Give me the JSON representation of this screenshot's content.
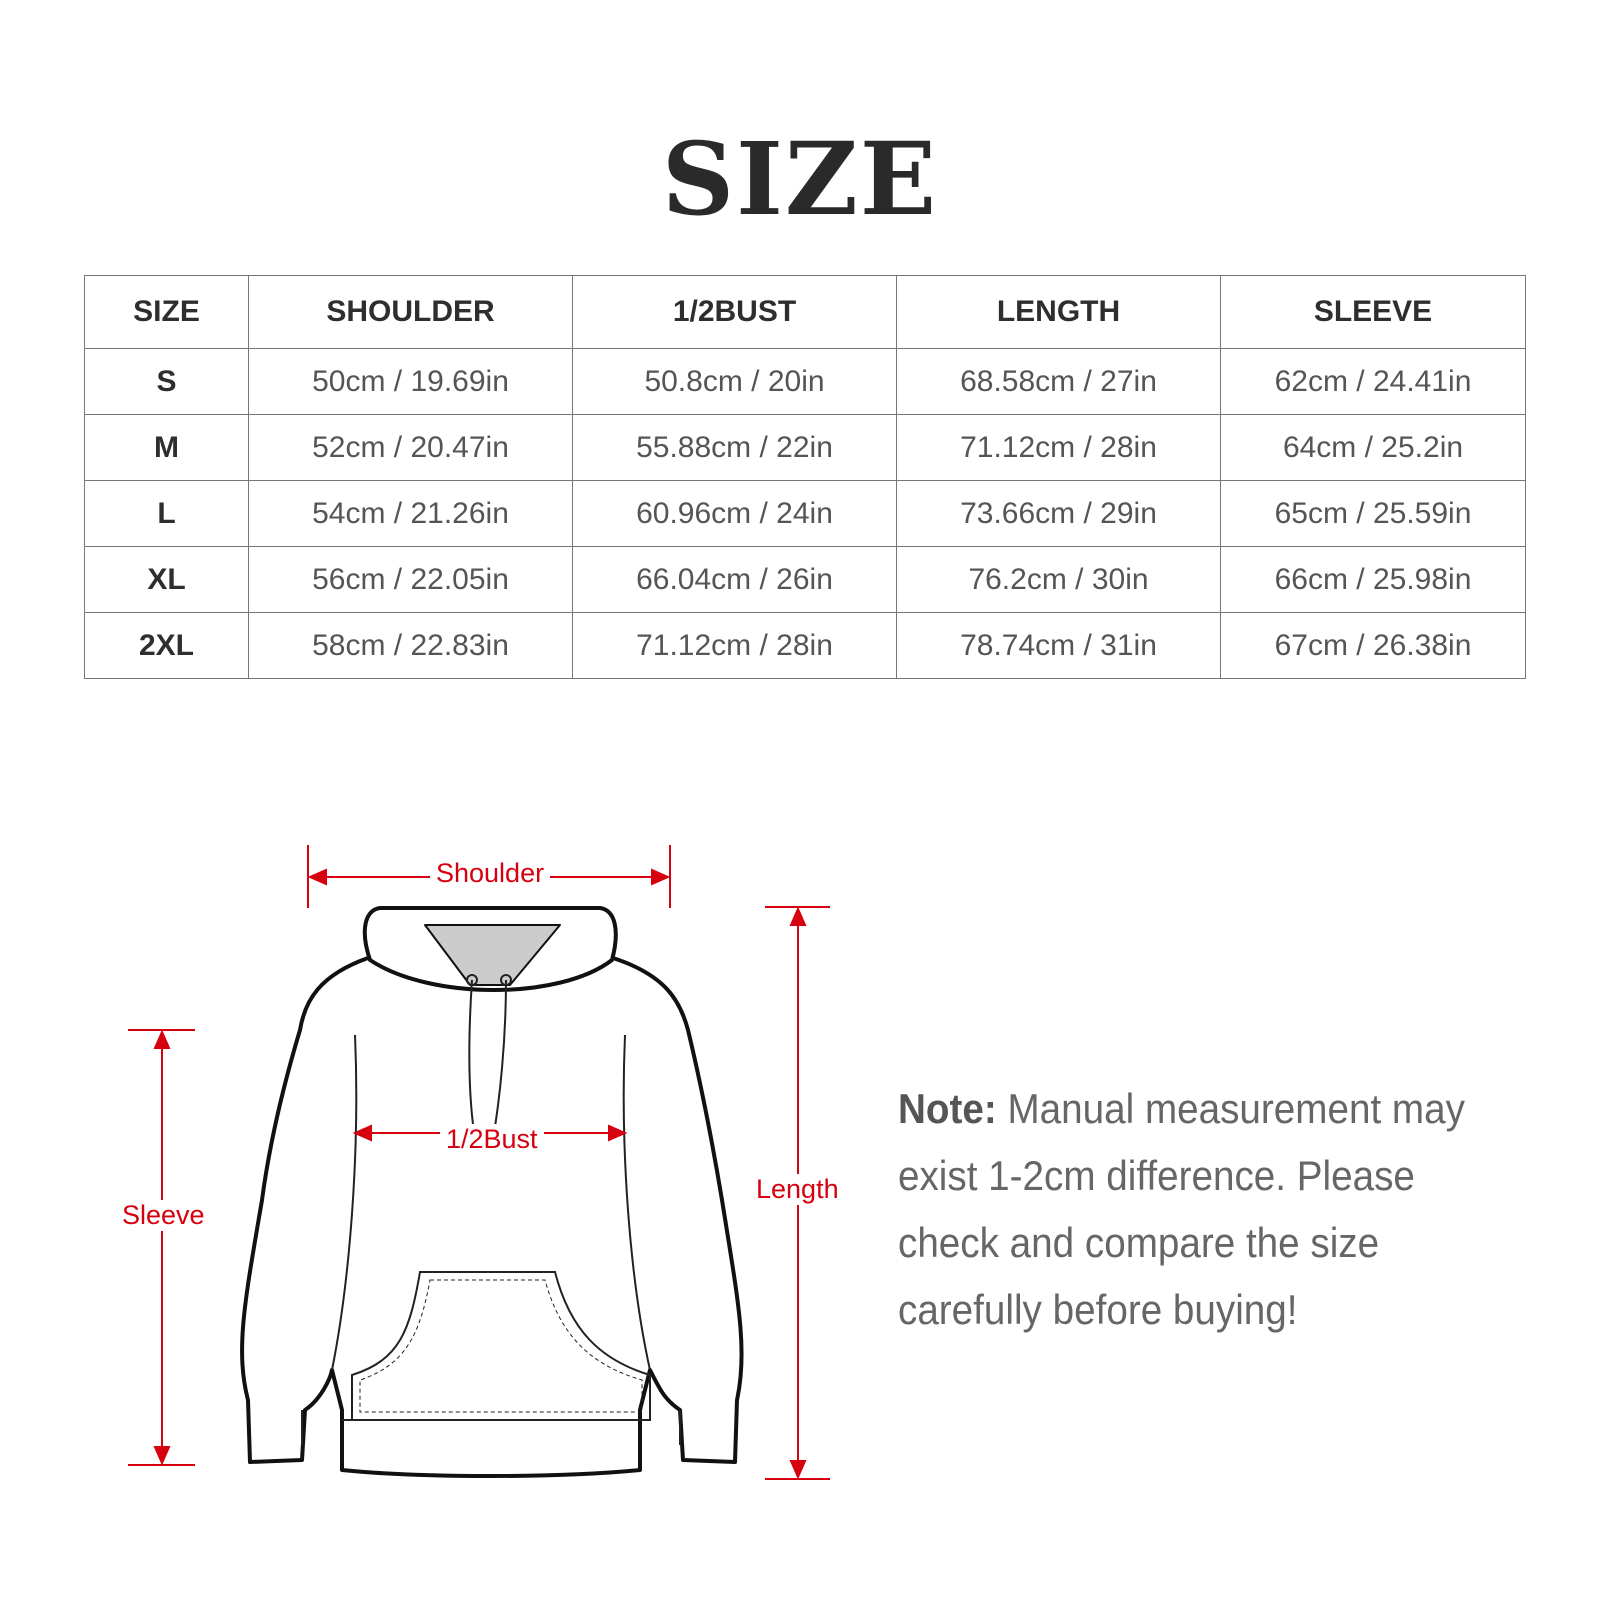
{
  "title": "SIZE",
  "table": {
    "headers": [
      "SIZE",
      "SHOULDER",
      "1/2BUST",
      "LENGTH",
      "SLEEVE"
    ],
    "rows": [
      [
        "S",
        "50cm / 19.69in",
        "50.8cm / 20in",
        "68.58cm / 27in",
        "62cm / 24.41in"
      ],
      [
        "M",
        "52cm / 20.47in",
        "55.88cm / 22in",
        "71.12cm / 28in",
        "64cm / 25.2in"
      ],
      [
        "L",
        "54cm / 21.26in",
        "60.96cm / 24in",
        "73.66cm / 29in",
        "65cm / 25.59in"
      ],
      [
        "XL",
        "56cm / 22.05in",
        "66.04cm / 26in",
        "76.2cm / 30in",
        "66cm / 25.98in"
      ],
      [
        "2XL",
        "58cm / 22.83in",
        "71.12cm / 28in",
        "78.74cm / 31in",
        "67cm / 26.38in"
      ]
    ]
  },
  "diagram": {
    "shoulder": "Shoulder",
    "bust": "1/2Bust",
    "sleeve": "Sleeve",
    "length": "Length",
    "accent_color": "#d7000f"
  },
  "note": {
    "label": "Note:",
    "text": " Manual measurement may exist 1-2cm difference. Please check and compare the size carefully before buying!"
  }
}
